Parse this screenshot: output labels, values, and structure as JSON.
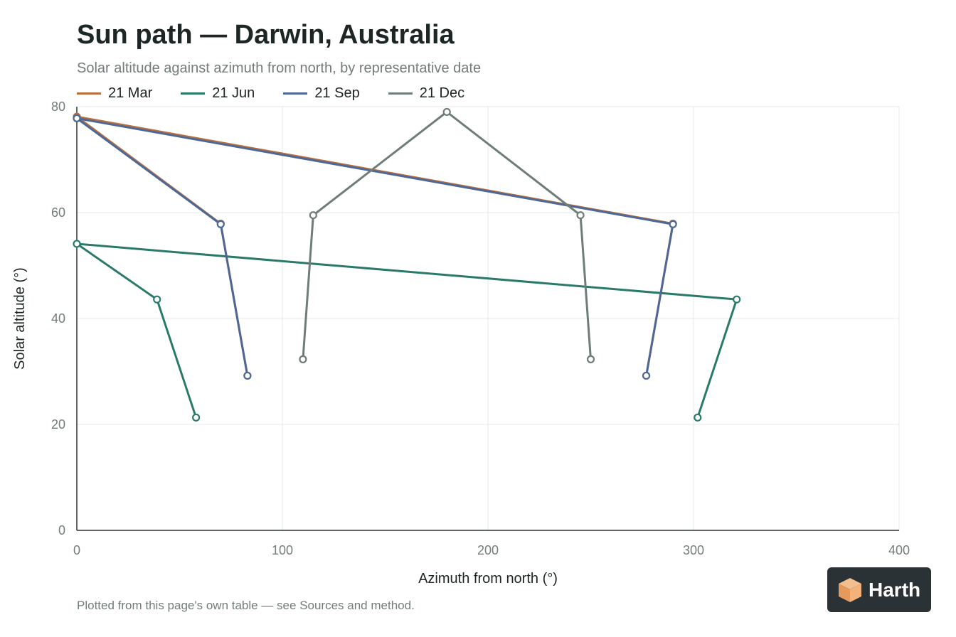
{
  "title": "Sun path — Darwin, Australia",
  "subtitle": "Solar altitude against azimuth from north, by representative date",
  "footnote": "Plotted from this page's own table — see Sources and method.",
  "badge": {
    "text": "Harth",
    "icon": "cube-logo-icon"
  },
  "chart_data": {
    "type": "line",
    "xlabel": "Azimuth from north (°)",
    "ylabel": "Solar altitude (°)",
    "xlim": [
      0,
      400
    ],
    "ylim": [
      0,
      80
    ],
    "xticks": [
      0,
      100,
      200,
      300,
      400
    ],
    "yticks": [
      0,
      20,
      40,
      60,
      80
    ],
    "grid": true,
    "legend_position": "top-left",
    "series": [
      {
        "name": "21 Mar",
        "color": "#b86f3e",
        "x": [
          83,
          70,
          0,
          290,
          277
        ],
        "y": [
          29.2,
          57.9,
          78.1,
          57.9,
          29.2
        ]
      },
      {
        "name": "21 Jun",
        "color": "#2a7a6a",
        "x": [
          58,
          39,
          0,
          321,
          302
        ],
        "y": [
          21.3,
          43.6,
          54.1,
          43.6,
          21.3
        ]
      },
      {
        "name": "21 Sep",
        "color": "#4d6896",
        "x": [
          83,
          70,
          0,
          290,
          277
        ],
        "y": [
          29.2,
          57.8,
          77.8,
          57.8,
          29.2
        ]
      },
      {
        "name": "21 Dec",
        "color": "#6f7d78",
        "x": [
          110,
          115,
          180,
          245,
          250
        ],
        "y": [
          32.3,
          59.5,
          79.0,
          59.5,
          32.3
        ]
      }
    ]
  }
}
